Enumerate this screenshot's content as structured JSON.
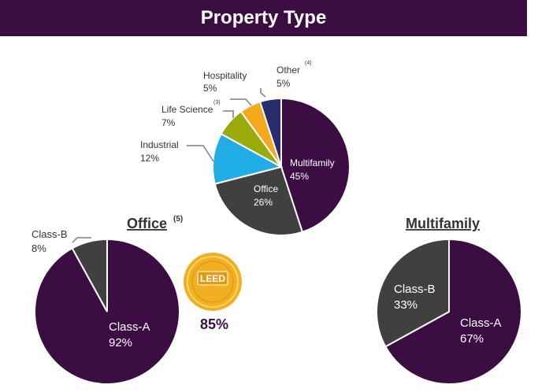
{
  "header": {
    "title": "Property Type"
  },
  "colors": {
    "banner": "#3b0d43",
    "multifamily": "#3b0d43",
    "office": "#404040",
    "industrial": "#1eaee5",
    "life_science": "#9aaa0a",
    "hospitality": "#f5a81a",
    "other": "#2a2d6b",
    "leed_gold": "#f2b021"
  },
  "leed": {
    "badge_text": "LEED",
    "value": "85%"
  },
  "chart_data": [
    {
      "type": "pie",
      "title": "",
      "slices": [
        {
          "label": "Multifamily",
          "value": 45,
          "value_label": "45%",
          "color": "#3b0d43"
        },
        {
          "label": "Office",
          "value": 26,
          "value_label": "26%",
          "color": "#404040"
        },
        {
          "label": "Industrial",
          "value": 12,
          "value_label": "12%",
          "color": "#1eaee5"
        },
        {
          "label": "Life Science",
          "footnote": "(3)",
          "value": 7,
          "value_label": "7%",
          "color": "#9aaa0a"
        },
        {
          "label": "Hospitality",
          "value": 5,
          "value_label": "5%",
          "color": "#f5a81a"
        },
        {
          "label": "Other",
          "footnote": "(4)",
          "value": 5,
          "value_label": "5%",
          "color": "#2a2d6b"
        }
      ]
    },
    {
      "type": "pie",
      "title": "Office",
      "title_footnote": "(5)",
      "slices": [
        {
          "label": "Class-A",
          "value": 92,
          "value_label": "92%",
          "color": "#3b0d43"
        },
        {
          "label": "Class-B",
          "value": 8,
          "value_label": "8%",
          "color": "#404040"
        }
      ]
    },
    {
      "type": "pie",
      "title": "Multifamily",
      "slices": [
        {
          "label": "Class-A",
          "value": 67,
          "value_label": "67%",
          "color": "#3b0d43"
        },
        {
          "label": "Class-B",
          "value": 33,
          "value_label": "33%",
          "color": "#404040"
        }
      ]
    }
  ]
}
